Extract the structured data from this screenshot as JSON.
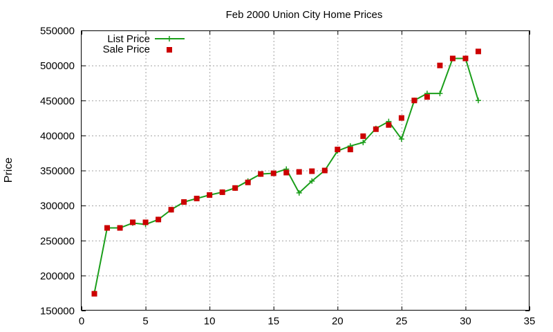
{
  "chart_data": {
    "type": "line",
    "title": "Feb 2000 Union City Home Prices",
    "xlabel": "",
    "ylabel": "Price",
    "xlim": [
      0,
      35
    ],
    "ylim": [
      150000,
      550000
    ],
    "x_ticks": [
      0,
      5,
      10,
      15,
      20,
      25,
      30,
      35
    ],
    "y_ticks": [
      150000,
      200000,
      250000,
      300000,
      350000,
      400000,
      450000,
      500000,
      550000
    ],
    "x_tick_labels": [
      "0",
      "5",
      "10",
      "15",
      "20",
      "25",
      "30",
      "35"
    ],
    "y_tick_labels": [
      "150000",
      "200000",
      "250000",
      "300000",
      "350000",
      "400000",
      "450000",
      "500000",
      "550000"
    ],
    "grid": true,
    "legend_position": "top-left",
    "series": [
      {
        "name": "List Price",
        "style": "line-plus",
        "color": "#1a9e1a",
        "x": [
          1,
          2,
          3,
          4,
          5,
          6,
          7,
          8,
          9,
          10,
          11,
          12,
          13,
          14,
          15,
          16,
          17,
          18,
          19,
          20,
          21,
          22,
          23,
          24,
          25,
          26,
          27,
          28,
          29,
          30,
          31
        ],
        "y": [
          175000,
          268000,
          268000,
          275000,
          273000,
          280000,
          294000,
          305000,
          310000,
          315000,
          319000,
          325000,
          335000,
          345000,
          346000,
          352000,
          318000,
          335000,
          350000,
          378000,
          385000,
          390000,
          410000,
          420000,
          395000,
          450000,
          460000,
          460000,
          510000,
          510000,
          450000
        ]
      },
      {
        "name": "Sale Price",
        "style": "square-points",
        "color": "#cc0000",
        "x": [
          1,
          2,
          3,
          4,
          5,
          6,
          7,
          8,
          9,
          10,
          11,
          12,
          13,
          14,
          15,
          16,
          17,
          18,
          19,
          20,
          21,
          22,
          23,
          24,
          25,
          26,
          27,
          28,
          29,
          30,
          31
        ],
        "y": [
          174000,
          268000,
          268000,
          276000,
          276000,
          280000,
          294000,
          305000,
          310000,
          315000,
          319000,
          325000,
          333000,
          345000,
          346000,
          347000,
          348000,
          349000,
          350000,
          380000,
          380000,
          399000,
          409000,
          415000,
          425000,
          450000,
          455000,
          500000,
          510000,
          510000,
          520000
        ]
      }
    ]
  }
}
